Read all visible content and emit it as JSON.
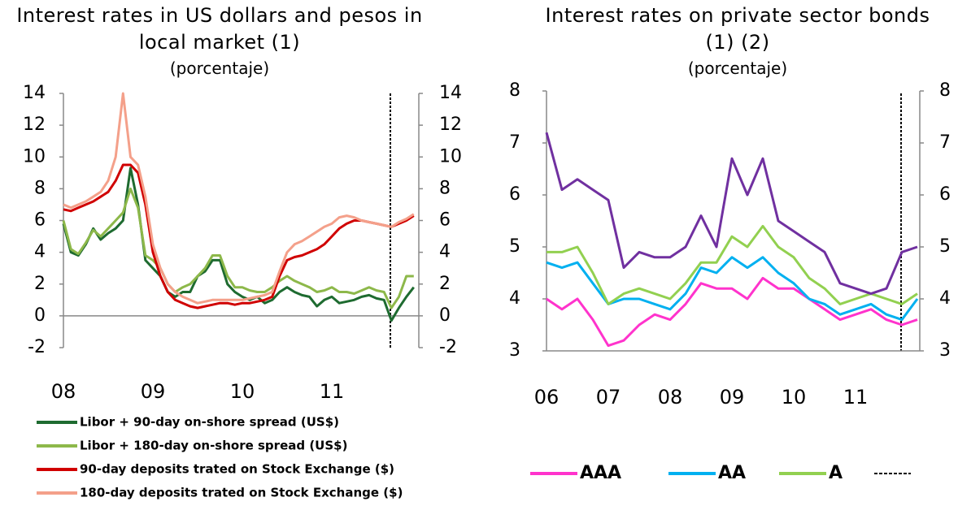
{
  "chart_data": [
    {
      "type": "line",
      "title": "Interest rates in US dollars and pesos in local market (1)",
      "subtitle": "(porcentaje)",
      "categories": [
        "08",
        null,
        null,
        null,
        null,
        null,
        null,
        null,
        null,
        null,
        null,
        null,
        "09",
        null,
        null,
        null,
        null,
        null,
        null,
        null,
        null,
        null,
        null,
        null,
        "10",
        null,
        null,
        null,
        null,
        null,
        null,
        null,
        null,
        null,
        null,
        null,
        "11",
        null,
        null,
        null,
        null,
        null,
        null,
        null,
        null,
        null,
        null,
        null
      ],
      "ylim": [
        -2,
        14
      ],
      "yticks": [
        -2,
        0,
        2,
        4,
        6,
        8,
        10,
        12,
        14
      ],
      "y2lim": [
        -2,
        14
      ],
      "y2ticks": [
        -2,
        0,
        2,
        4,
        6,
        8,
        10,
        12,
        14
      ],
      "legend": "bottom",
      "series": [
        {
          "name": "Libor + 90-day on-shore spread (US$)",
          "color": "#1e6b30",
          "values": [
            5.8,
            4.0,
            3.8,
            4.5,
            5.5,
            4.8,
            5.2,
            5.5,
            6.0,
            9.3,
            7.0,
            3.5,
            3.0,
            2.5,
            1.5,
            1.2,
            1.5,
            1.5,
            2.5,
            2.8,
            3.5,
            3.5,
            2.0,
            1.5,
            1.2,
            1.0,
            1.2,
            0.8,
            1.0,
            1.5,
            1.8,
            1.5,
            1.3,
            1.2,
            0.6,
            1.0,
            1.2,
            0.8,
            0.9,
            1.0,
            1.2,
            1.3,
            1.1,
            1.0,
            -0.3,
            0.5,
            1.2,
            1.8
          ]
        },
        {
          "name": "Libor + 180-day on-shore spread (US$)",
          "color": "#8db84a",
          "values": [
            6.0,
            4.2,
            3.9,
            4.6,
            5.4,
            5.0,
            5.5,
            6.0,
            6.5,
            8.0,
            6.8,
            3.8,
            3.5,
            3.0,
            2.0,
            1.5,
            1.8,
            2.0,
            2.5,
            3.0,
            3.8,
            3.8,
            2.5,
            1.8,
            1.8,
            1.6,
            1.5,
            1.5,
            1.8,
            2.2,
            2.5,
            2.2,
            2.0,
            1.8,
            1.5,
            1.6,
            1.8,
            1.5,
            1.5,
            1.4,
            1.6,
            1.8,
            1.6,
            1.5,
            0.5,
            1.2,
            2.5,
            2.5
          ]
        },
        {
          "name": "90-day deposits trated on Stock Exchange ($)",
          "color": "#d00000",
          "values": [
            6.7,
            6.6,
            6.8,
            7.0,
            7.2,
            7.5,
            7.8,
            8.5,
            9.5,
            9.5,
            9.0,
            7.0,
            4.0,
            2.5,
            1.5,
            1.0,
            0.8,
            0.6,
            0.5,
            0.6,
            0.7,
            0.8,
            0.8,
            0.7,
            0.8,
            0.8,
            0.9,
            1.0,
            1.2,
            2.5,
            3.5,
            3.7,
            3.8,
            4.0,
            4.2,
            4.5,
            5.0,
            5.5,
            5.8,
            6.0,
            6.0,
            5.9,
            5.8,
            5.7,
            5.6,
            5.8,
            6.0,
            6.3
          ]
        },
        {
          "name": "180-day deposits trated on Stock Exchange ($)",
          "color": "#f4a08a",
          "values": [
            7.0,
            6.8,
            7.0,
            7.2,
            7.5,
            7.8,
            8.5,
            10.0,
            14.0,
            10.0,
            9.5,
            7.5,
            4.5,
            3.0,
            2.0,
            1.5,
            1.2,
            1.0,
            0.8,
            0.9,
            1.0,
            1.0,
            1.0,
            1.0,
            1.0,
            1.1,
            1.2,
            1.3,
            1.5,
            2.8,
            4.0,
            4.5,
            4.7,
            5.0,
            5.3,
            5.6,
            5.8,
            6.2,
            6.3,
            6.2,
            6.0,
            5.9,
            5.8,
            5.7,
            5.6,
            5.9,
            6.1,
            6.4
          ]
        }
      ]
    },
    {
      "type": "line",
      "title": "Interest rates on private sector bonds (1) (2)",
      "subtitle": "(porcentaje)",
      "categories": [
        "06",
        null,
        null,
        null,
        "07",
        null,
        null,
        null,
        "08",
        null,
        null,
        null,
        "09",
        null,
        null,
        null,
        "10",
        null,
        null,
        null,
        "11",
        null,
        null,
        null,
        null
      ],
      "ylim": [
        3,
        8
      ],
      "yticks": [
        3,
        4,
        5,
        6,
        7,
        8
      ],
      "y2lim": [
        3,
        8
      ],
      "y2ticks": [
        3,
        4,
        5,
        6,
        7,
        8
      ],
      "legend": "bottom",
      "series": [
        {
          "name": "AAA",
          "color": "#ff33cc",
          "values": [
            4.0,
            3.8,
            4.0,
            3.6,
            3.1,
            3.2,
            3.5,
            3.7,
            3.6,
            3.9,
            4.3,
            4.2,
            4.2,
            4.0,
            4.4,
            4.2,
            4.2,
            4.0,
            3.8,
            3.6,
            3.7,
            3.8,
            3.6,
            3.5,
            3.6
          ]
        },
        {
          "name": "AA",
          "color": "#00b0f0",
          "values": [
            4.7,
            4.6,
            4.7,
            4.3,
            3.9,
            4.0,
            4.0,
            3.9,
            3.8,
            4.1,
            4.6,
            4.5,
            4.8,
            4.6,
            4.8,
            4.5,
            4.3,
            4.0,
            3.9,
            3.7,
            3.8,
            3.9,
            3.7,
            3.6,
            4.0
          ]
        },
        {
          "name": "A",
          "color": "#92d050",
          "values": [
            4.9,
            4.9,
            5.0,
            4.5,
            3.9,
            4.1,
            4.2,
            4.1,
            4.0,
            4.3,
            4.7,
            4.7,
            5.2,
            5.0,
            5.4,
            5.0,
            4.8,
            4.4,
            4.2,
            3.9,
            4.0,
            4.1,
            4.0,
            3.9,
            4.1
          ]
        },
        {
          "color": "#7030a0",
          "values": [
            7.2,
            6.1,
            6.3,
            6.1,
            5.9,
            4.6,
            4.9,
            4.8,
            4.8,
            5.0,
            5.6,
            5.0,
            6.7,
            6.0,
            6.7,
            5.5,
            5.3,
            5.1,
            4.9,
            4.3,
            4.2,
            4.1,
            4.2,
            4.9,
            5.0
          ]
        }
      ]
    }
  ]
}
